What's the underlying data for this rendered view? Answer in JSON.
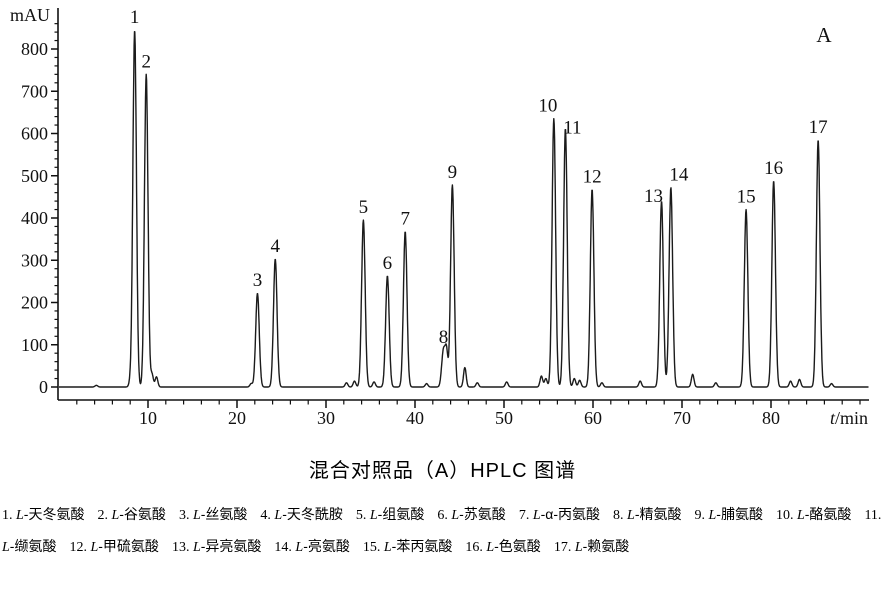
{
  "chart_data": {
    "type": "line",
    "title": "混合对照品（A）HPLC 图谱",
    "panel_label": "A",
    "y_axis_label": "mAU",
    "x_axis_label_italic": "t",
    "x_axis_label_rest": "/min",
    "x_range": [
      0,
      91
    ],
    "y_range": [
      0,
      870
    ],
    "x_major_ticks": [
      10,
      20,
      30,
      40,
      50,
      60,
      70,
      80
    ],
    "x_minor_step": 2,
    "x_minor_max": 90,
    "y_major_ticks": [
      0,
      100,
      200,
      300,
      400,
      500,
      600,
      700,
      800
    ],
    "y_minor_step": 20,
    "y_minor_max": 860,
    "line_color": "#1b1b1b",
    "axis_color": "#111111",
    "peak_sigma_min": 0.2,
    "feature_sigma_min": 0.15,
    "peaks": [
      {
        "number": "1",
        "t_min": 8.5,
        "height_mau": 845
      },
      {
        "number": "2",
        "t_min": 9.8,
        "height_mau": 740
      },
      {
        "number": "3",
        "t_min": 22.3,
        "height_mau": 222
      },
      {
        "number": "4",
        "t_min": 24.3,
        "height_mau": 303
      },
      {
        "number": "5",
        "t_min": 34.2,
        "height_mau": 395
      },
      {
        "number": "6",
        "t_min": 36.9,
        "height_mau": 263
      },
      {
        "number": "7",
        "t_min": 38.9,
        "height_mau": 368
      },
      {
        "number": "8",
        "t_min": 43.2,
        "height_mau": 88
      },
      {
        "number": "9",
        "t_min": 44.2,
        "height_mau": 478
      },
      {
        "number": "10",
        "t_min": 55.6,
        "height_mau": 635,
        "label_dx": -6
      },
      {
        "number": "11",
        "t_min": 56.9,
        "height_mau": 612,
        "label_dx": 7,
        "label_dy": 12
      },
      {
        "number": "12",
        "t_min": 59.9,
        "height_mau": 468
      },
      {
        "number": "13",
        "t_min": 67.7,
        "height_mau": 440,
        "label_dx": -8,
        "label_dy": 8
      },
      {
        "number": "14",
        "t_min": 68.75,
        "height_mau": 472,
        "label_dx": 8
      },
      {
        "number": "15",
        "t_min": 77.2,
        "height_mau": 420
      },
      {
        "number": "16",
        "t_min": 80.3,
        "height_mau": 488
      },
      {
        "number": "17",
        "t_min": 85.3,
        "height_mau": 585
      }
    ],
    "minor_features": [
      {
        "t_min": 4.2,
        "height_mau": 4
      },
      {
        "t_min": 8.0,
        "height_mau": 10
      },
      {
        "t_min": 10.45,
        "height_mau": 30
      },
      {
        "t_min": 10.95,
        "height_mau": 24
      },
      {
        "t_min": 21.6,
        "height_mau": 8
      },
      {
        "t_min": 32.3,
        "height_mau": 10
      },
      {
        "t_min": 33.2,
        "height_mau": 14
      },
      {
        "t_min": 35.4,
        "height_mau": 12
      },
      {
        "t_min": 41.3,
        "height_mau": 8
      },
      {
        "t_min": 43.55,
        "height_mau": 76
      },
      {
        "t_min": 45.6,
        "height_mau": 46
      },
      {
        "t_min": 47.0,
        "height_mau": 10
      },
      {
        "t_min": 50.3,
        "height_mau": 12
      },
      {
        "t_min": 54.2,
        "height_mau": 26
      },
      {
        "t_min": 54.7,
        "height_mau": 20
      },
      {
        "t_min": 57.9,
        "height_mau": 20
      },
      {
        "t_min": 58.5,
        "height_mau": 16
      },
      {
        "t_min": 61.0,
        "height_mau": 10
      },
      {
        "t_min": 65.3,
        "height_mau": 14
      },
      {
        "t_min": 71.2,
        "height_mau": 30
      },
      {
        "t_min": 73.8,
        "height_mau": 10
      },
      {
        "t_min": 82.2,
        "height_mau": 14
      },
      {
        "t_min": 83.2,
        "height_mau": 18
      },
      {
        "t_min": 86.8,
        "height_mau": 8
      }
    ]
  },
  "legend": {
    "items": [
      {
        "num": "1.",
        "prefix": "L",
        "name": "-天冬氨酸"
      },
      {
        "num": "2.",
        "prefix": "L",
        "name": "-谷氨酸"
      },
      {
        "num": "3.",
        "prefix": "L",
        "name": "-丝氨酸"
      },
      {
        "num": "4.",
        "prefix": "L",
        "name": "-天冬酰胺"
      },
      {
        "num": "5.",
        "prefix": "L",
        "name": "-组氨酸"
      },
      {
        "num": "6.",
        "prefix": "L",
        "name": "-苏氨酸"
      },
      {
        "num": "7.",
        "prefix": "L",
        "name": "-α-丙氨酸"
      },
      {
        "num": "8.",
        "prefix": "L",
        "name": "-精氨酸"
      },
      {
        "num": "9.",
        "prefix": "L",
        "name": "-脯氨酸"
      },
      {
        "num": "10.",
        "prefix": "L",
        "name": "-酪氨酸"
      },
      {
        "num": "11.",
        "prefix": "L",
        "name": "-缬氨酸"
      },
      {
        "num": "12.",
        "prefix": "L",
        "name": "-甲硫氨酸"
      },
      {
        "num": "13.",
        "prefix": "L",
        "name": "-异亮氨酸"
      },
      {
        "num": "14.",
        "prefix": "L",
        "name": "-亮氨酸"
      },
      {
        "num": "15.",
        "prefix": "L",
        "name": "-苯丙氨酸"
      },
      {
        "num": "16.",
        "prefix": "L",
        "name": "-色氨酸"
      },
      {
        "num": "17.",
        "prefix": "L",
        "name": "-赖氨酸"
      }
    ]
  }
}
